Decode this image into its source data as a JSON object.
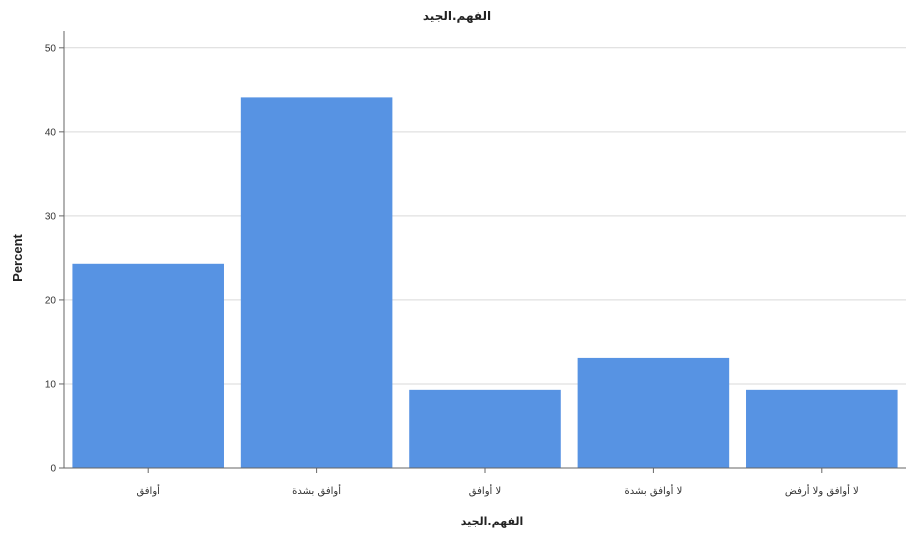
{
  "chart_data": {
    "type": "bar",
    "title": "الفهم.الجيد",
    "xlabel": "الفهم.الجيد",
    "ylabel": "Percent",
    "categories": [
      "أوافق",
      "أوافق بشدة",
      "لا أوافق",
      "لا أوافق بشدة",
      "لا أوافق ولا أرفض"
    ],
    "values": [
      24.3,
      44.1,
      9.3,
      13.1,
      9.3
    ],
    "ylim": [
      0,
      52
    ],
    "yticks": [
      0,
      10,
      20,
      30,
      40,
      50
    ],
    "grid": true,
    "legend": "none",
    "bar_color": "#5793e3"
  }
}
